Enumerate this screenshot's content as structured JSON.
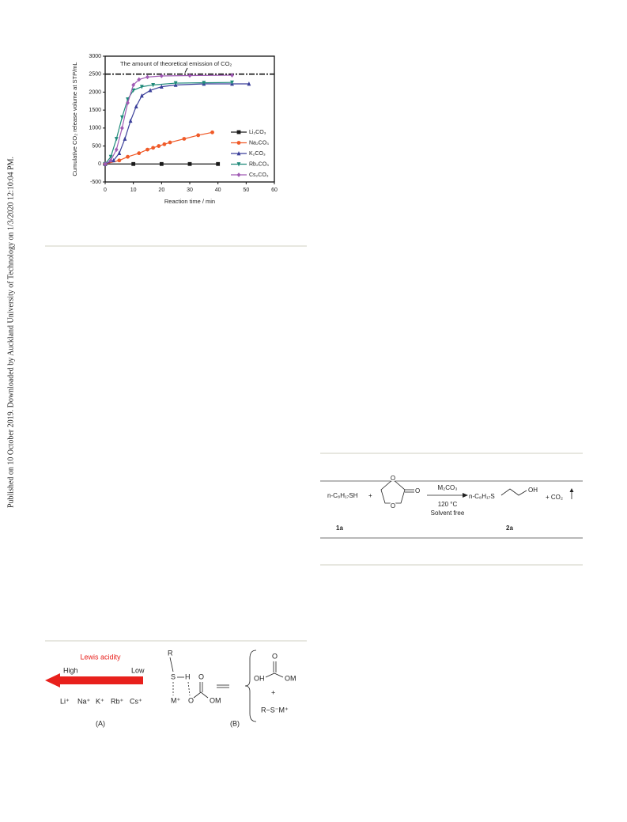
{
  "side_note": "Published on 10 October 2019. Downloaded by Auckland University of Technology on 1/3/2020 12:10:04 PM.",
  "chart_data": {
    "type": "line",
    "xlabel": "Reaction time / min",
    "ylabel": "Cumulative CO₂ release volume at STP/mL",
    "xlim": [
      0,
      60
    ],
    "xticks": [
      0,
      10,
      20,
      30,
      40,
      50,
      60
    ],
    "ylim": [
      -500,
      3000
    ],
    "yticks": [
      -500,
      0,
      500,
      1000,
      1500,
      2000,
      2500,
      3000
    ],
    "reference_line": 2500,
    "annotation": "The amount of theoretical emission of CO₂",
    "legend": "right",
    "series": [
      {
        "name": "Li₂CO₃",
        "color": "#1a1a1a",
        "marker": "square",
        "x": [
          0,
          10,
          20,
          30,
          40
        ],
        "values": [
          0,
          0,
          0,
          0,
          0
        ]
      },
      {
        "name": "Na₂CO₃",
        "color": "#f05a28",
        "marker": "circle",
        "x": [
          0,
          5,
          8,
          12,
          15,
          17,
          19,
          21,
          23,
          28,
          33,
          38
        ],
        "values": [
          0,
          100,
          200,
          300,
          400,
          450,
          500,
          550,
          600,
          700,
          800,
          880
        ]
      },
      {
        "name": "K₂CO₃",
        "color": "#3a3f9a",
        "marker": "triangle-up",
        "x": [
          0,
          3,
          5,
          7,
          9,
          11,
          13,
          16,
          20,
          25,
          35,
          45,
          51
        ],
        "values": [
          0,
          100,
          300,
          700,
          1200,
          1600,
          1900,
          2050,
          2150,
          2200,
          2230,
          2230,
          2230
        ]
      },
      {
        "name": "Rb₂CO₃",
        "color": "#1f8a7a",
        "marker": "triangle-down",
        "x": [
          0,
          2,
          4,
          6,
          8,
          10,
          13,
          17,
          25,
          35,
          45
        ],
        "values": [
          0,
          200,
          700,
          1300,
          1800,
          2050,
          2150,
          2200,
          2250,
          2260,
          2270
        ]
      },
      {
        "name": "Cs₂CO₃",
        "color": "#a05ab4",
        "marker": "diamond",
        "x": [
          0,
          2,
          4,
          6,
          8,
          10,
          12,
          15,
          20,
          30,
          45
        ],
        "values": [
          0,
          100,
          400,
          1000,
          1700,
          2200,
          2350,
          2420,
          2450,
          2460,
          2470
        ]
      }
    ]
  },
  "scheme": {
    "reactant": "n-C₈H₁₇SH",
    "plus": "+",
    "ring_o1": "O",
    "ring_o2": "O",
    "carbonyl_o": "O",
    "reagent": "M₂CO₃",
    "temperature": "120 °C",
    "solvent": "Solvent free",
    "product_chain": "n-C₈H₁₇S",
    "product_oh": "OH",
    "coproduct": "+ CO₂",
    "label_reactant": "1a",
    "label_product": "2a"
  },
  "figure": {
    "lewis": "Lewis acidity",
    "high": "High",
    "low": "Low",
    "ions": [
      "Li⁺",
      "Na⁺",
      "K⁺",
      "Rb⁺",
      "Cs⁺"
    ],
    "panel_a": "(A)",
    "panel_b": "(B)",
    "r": "R",
    "s": "S",
    "h": "H",
    "m": "M⁺",
    "o_bridge": "O",
    "o_top": "O",
    "om": "OM",
    "p_o": "O",
    "p_oh": "OH",
    "p_om": "OM",
    "p_plus": "+",
    "p_thiolate": "R−S⁻M⁺"
  }
}
